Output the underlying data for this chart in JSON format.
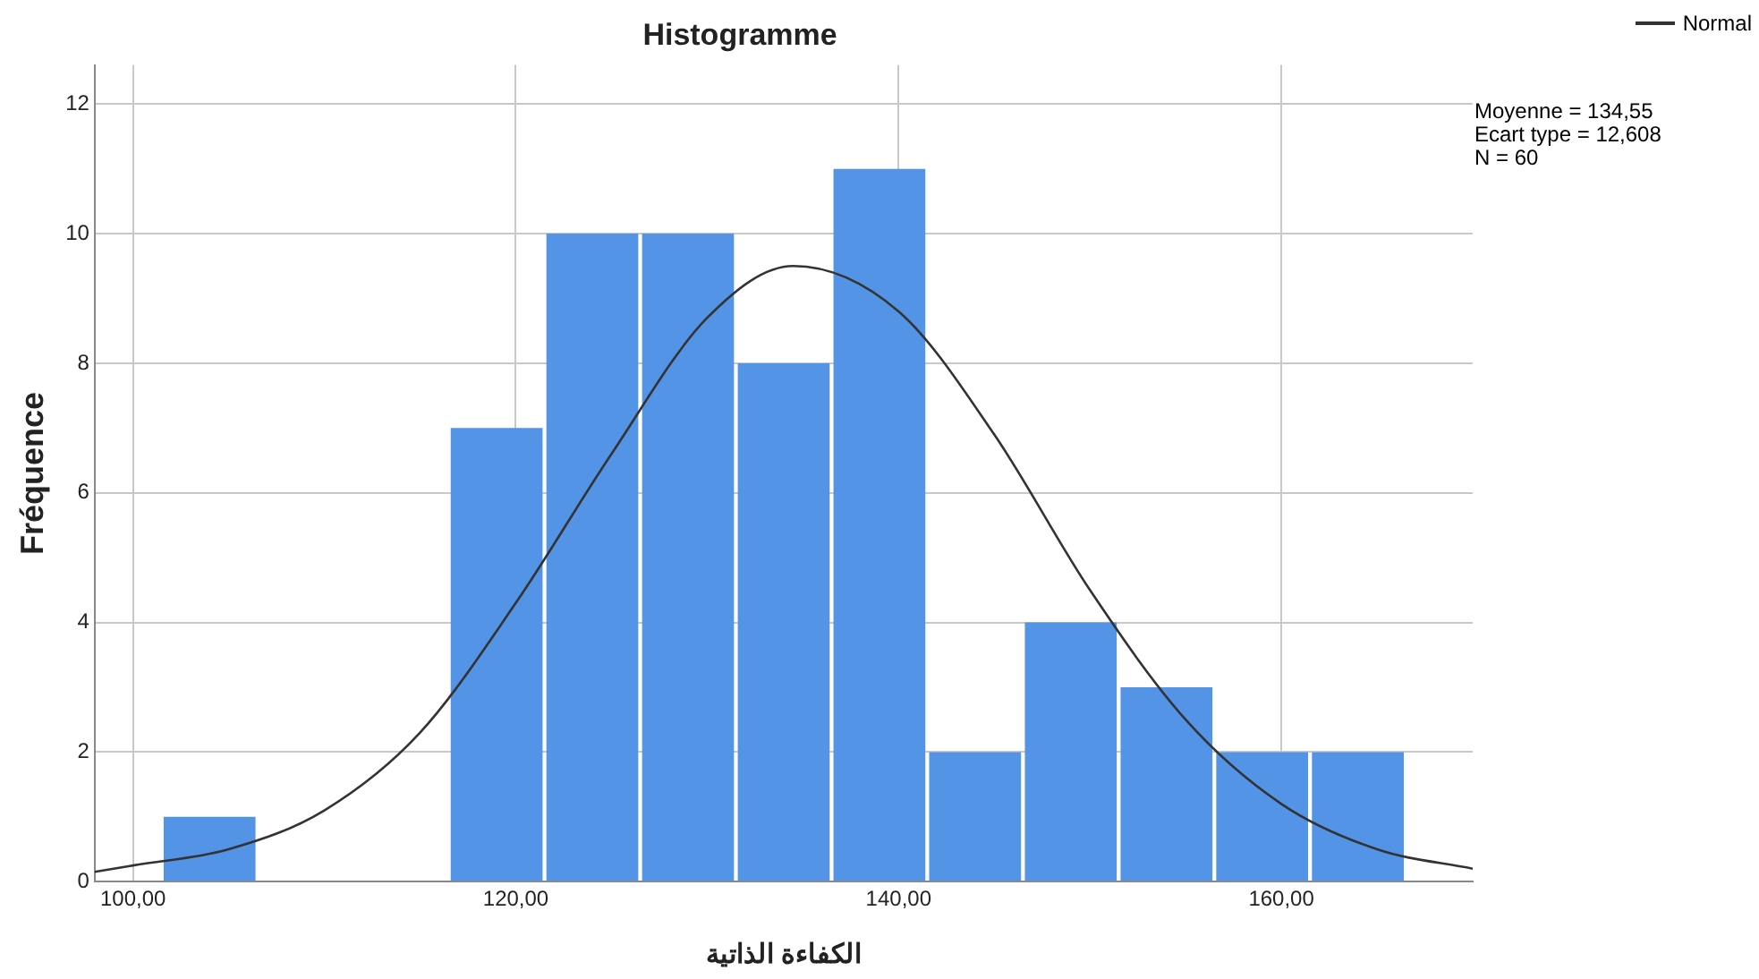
{
  "chart_data": {
    "type": "histogram",
    "title": "Histogramme",
    "xlabel": "الكفاءة الذاتية",
    "ylabel": "Fréquence",
    "bins": [
      101.5,
      106.5,
      111.5,
      116.5,
      121.5,
      126.5,
      131.5,
      136.5,
      141.5,
      146.5,
      151.5,
      156.5,
      161.5,
      166.5
    ],
    "values": [
      1,
      0,
      0,
      7,
      10,
      10,
      8,
      11,
      2,
      4,
      3,
      2,
      2
    ],
    "color": "#5494e6",
    "series": [
      {
        "name": "Normal",
        "type": "line",
        "color": "#333333",
        "x": [
          98,
          100,
          105,
          110,
          115,
          120,
          125,
          130,
          134.5,
          140,
          145,
          150,
          155,
          160,
          165,
          170
        ],
        "values": [
          0.15,
          0.25,
          0.5,
          1.1,
          2.3,
          4.3,
          6.6,
          8.7,
          9.5,
          8.8,
          6.9,
          4.5,
          2.5,
          1.2,
          0.5,
          0.2
        ]
      }
    ],
    "xlim": [
      98,
      170
    ],
    "xticks": [
      {
        "value": 100,
        "label": "100,00"
      },
      {
        "value": 120,
        "label": "120,00"
      },
      {
        "value": 140,
        "label": "140,00"
      },
      {
        "value": 160,
        "label": "160,00"
      }
    ],
    "ylim": [
      0,
      12.6
    ],
    "yticks": [
      0,
      2,
      4,
      6,
      8,
      10,
      12
    ],
    "grid": true,
    "legend": "top right",
    "marker": "none",
    "annotations": [
      "Moyenne = 134,55",
      "Ecart type = 12,608",
      "N = 60"
    ]
  }
}
